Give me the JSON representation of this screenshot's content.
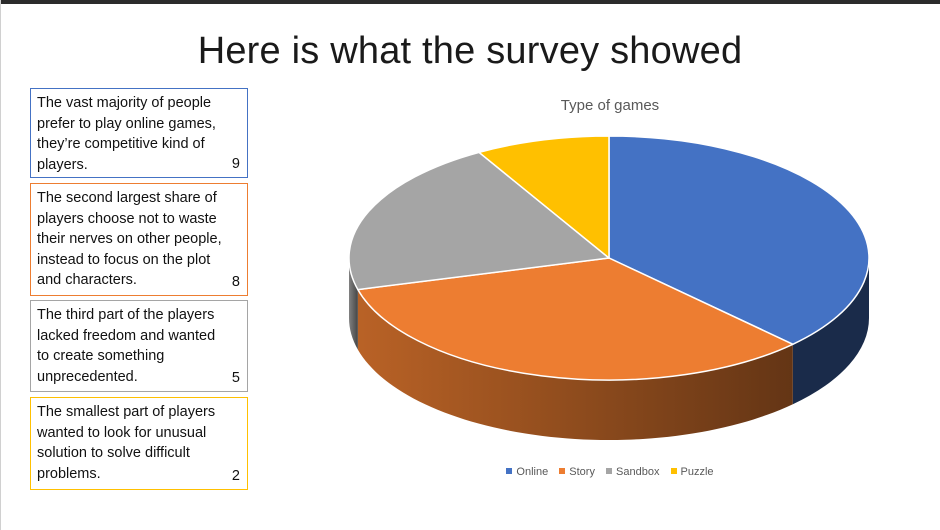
{
  "slide": {
    "title": "Here is what the survey showed"
  },
  "notes": [
    {
      "text": "The vast majority of people prefer to play online games, they’re competitive kind of players.",
      "value": "9",
      "color": "#4472c4"
    },
    {
      "text": "The second largest share of players choose not to waste their nerves on other people, instead to focus on the plot and characters.",
      "value": "8",
      "color": "#ed7d31"
    },
    {
      "text": "The third part of the players lacked freedom and wanted to create something unprecedented.",
      "value": "5",
      "color": "#a5a5a5"
    },
    {
      "text": "The smallest part of players wanted to look for unusual solution to solve difficult problems.",
      "value": "2",
      "color": "#ffc000"
    }
  ],
  "chart_data": {
    "type": "pie",
    "style": "3d",
    "title": "Type of games",
    "categories": [
      "Online",
      "Story",
      "Sandbox",
      "Puzzle"
    ],
    "values": [
      9,
      8,
      5,
      2
    ],
    "colors": [
      "#4472c4",
      "#ed7d31",
      "#a5a5a5",
      "#ffc000"
    ],
    "legend_position": "bottom"
  }
}
